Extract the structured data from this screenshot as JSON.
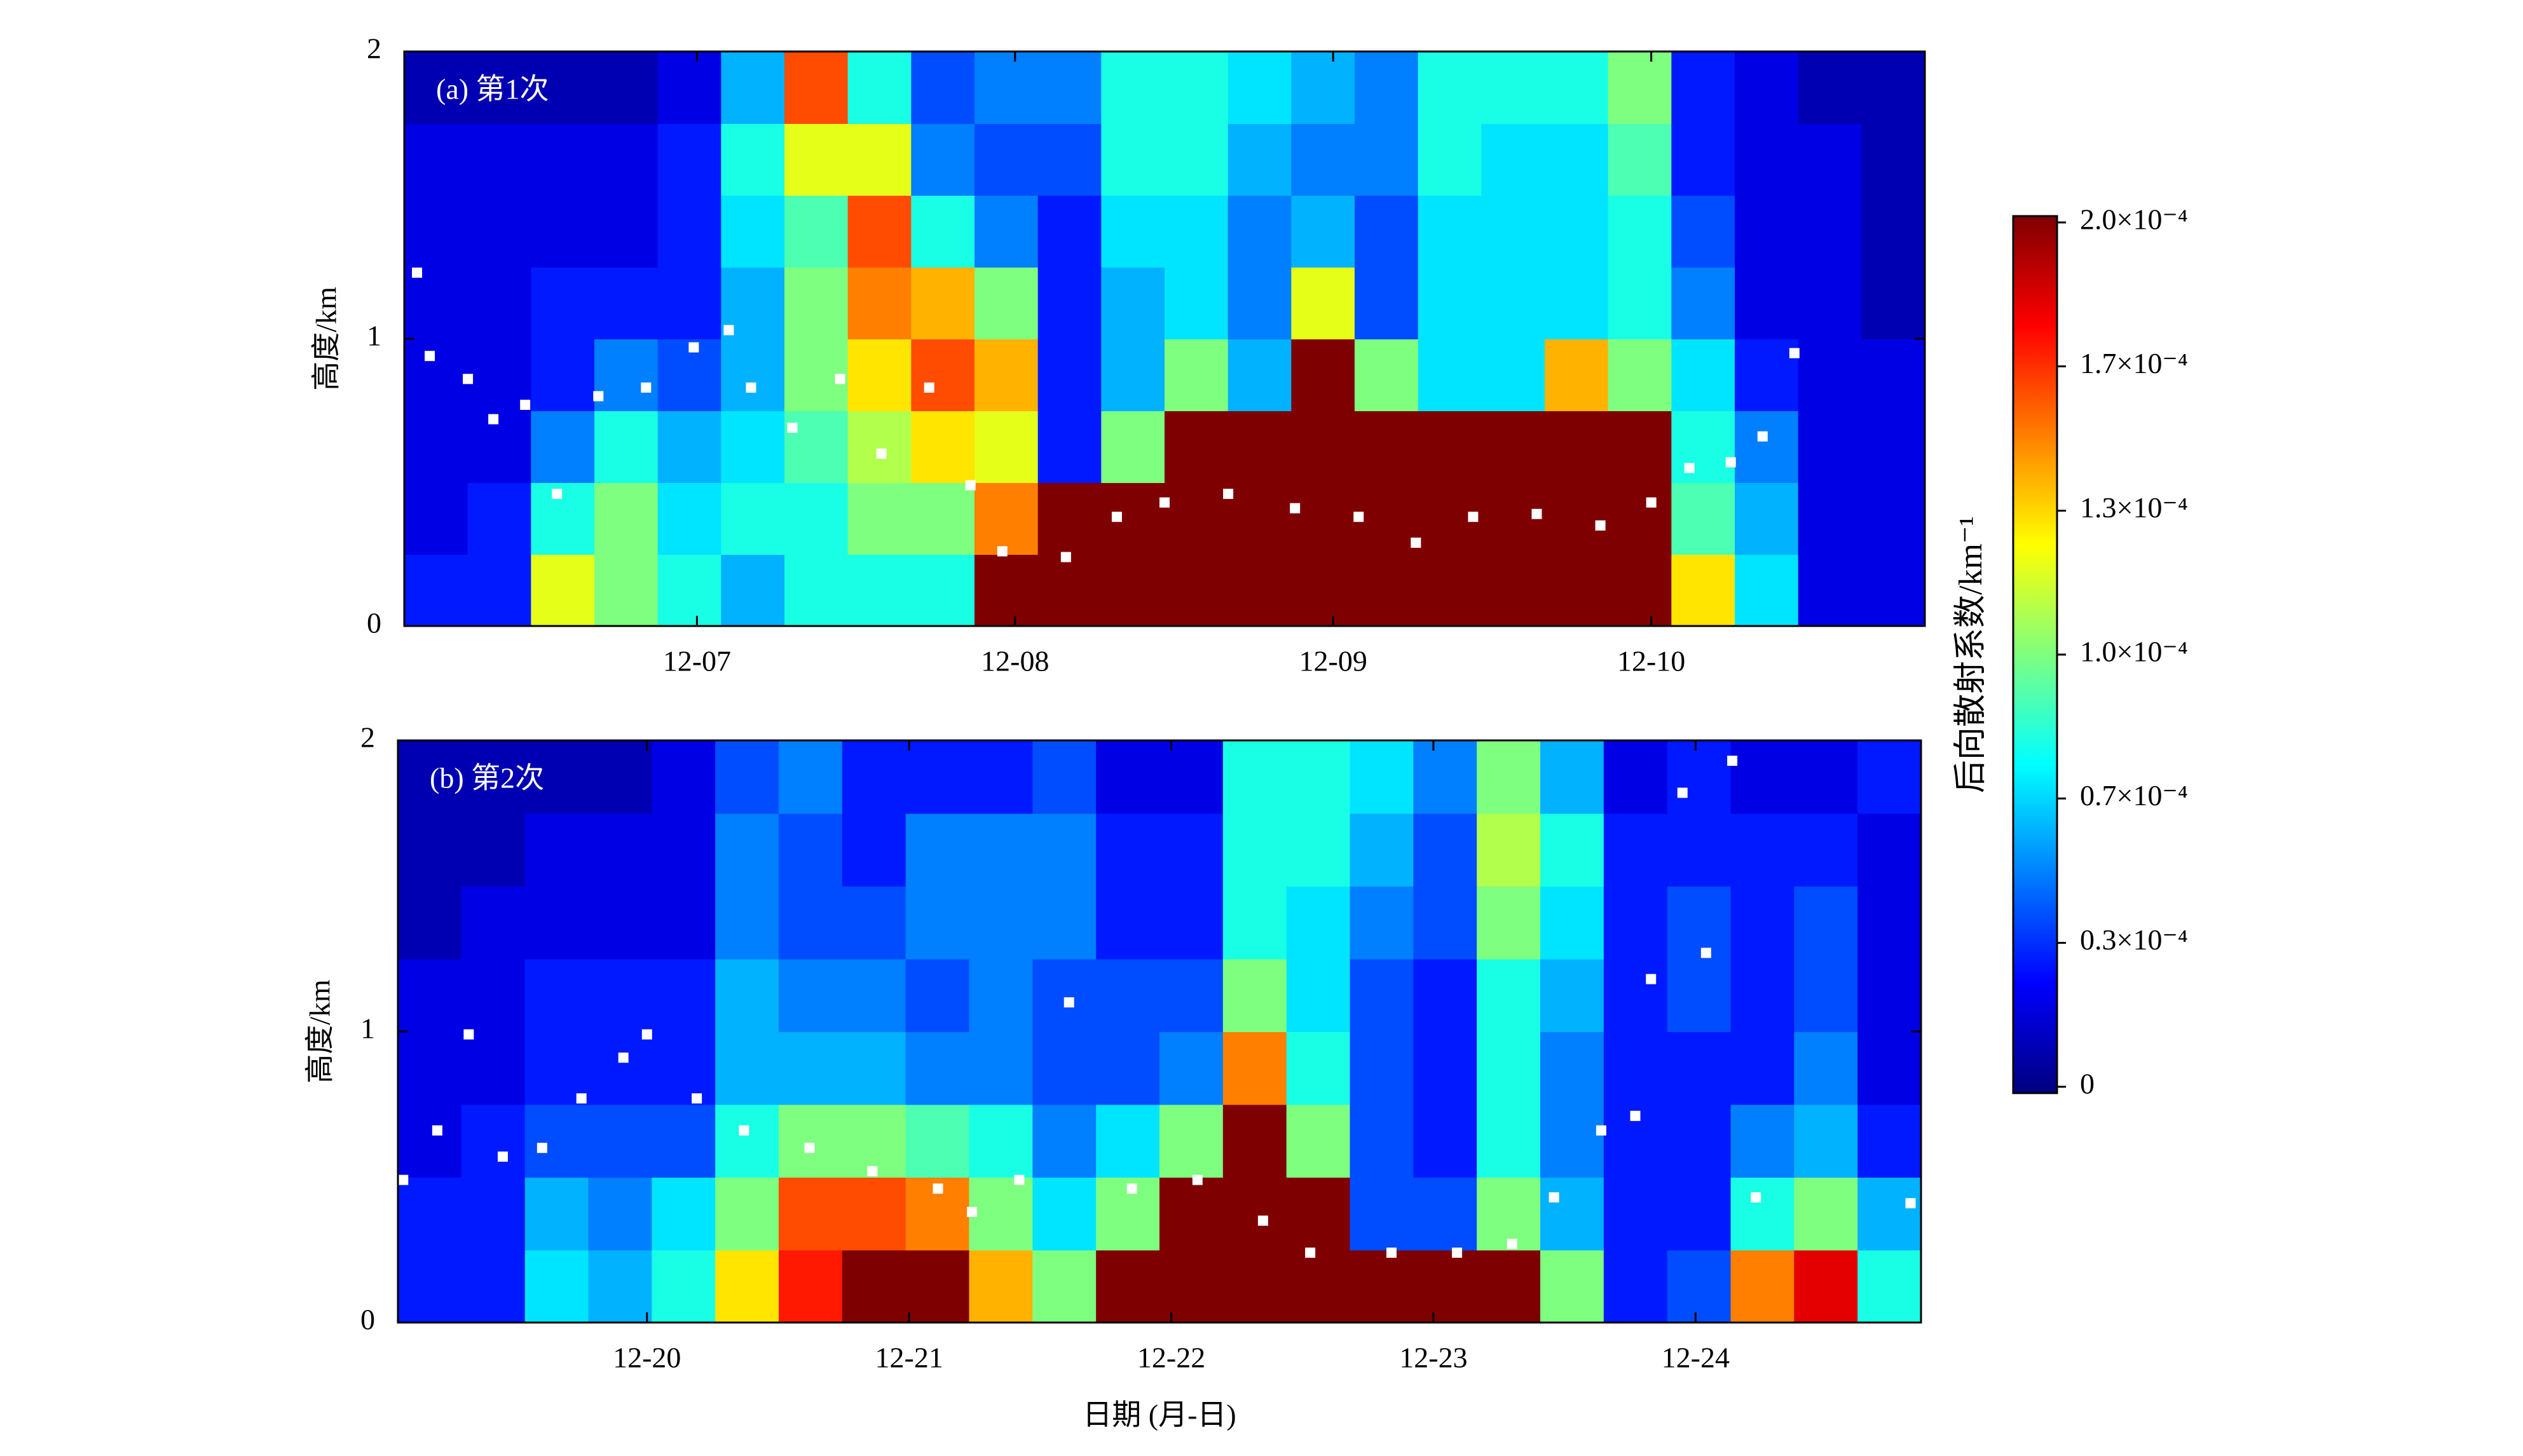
{
  "chart_data": [
    {
      "type": "heatmap",
      "title": "(a) 第1次",
      "ylabel": "高度/km",
      "xlim": [
        6.08,
        10.86
      ],
      "ylim": [
        0,
        2
      ],
      "xticks": [
        {
          "value": 7,
          "label": "12-07"
        },
        {
          "value": 8,
          "label": "12-08"
        },
        {
          "value": 9,
          "label": "12-09"
        },
        {
          "value": 10,
          "label": "12-10"
        }
      ],
      "yticks": [
        0,
        1,
        2
      ],
      "z": [
        [
          3e-05,
          3e-05,
          0.00012,
          0.0001,
          8e-05,
          6e-05,
          8e-05,
          8e-05,
          8e-05,
          0.0002,
          0.0002,
          0.0002,
          0.0002,
          0.0002,
          0.0002,
          0.0002,
          0.0002,
          0.0002,
          0.0002,
          0.0002,
          0.00013,
          7e-05,
          2e-05,
          2e-05
        ],
        [
          2e-05,
          3e-05,
          8e-05,
          0.0001,
          7e-05,
          8e-05,
          8e-05,
          0.0001,
          0.0001,
          0.00015,
          0.0002,
          0.0002,
          0.0002,
          0.0002,
          0.0002,
          0.0002,
          0.0002,
          0.0002,
          0.0002,
          0.0002,
          9e-05,
          6e-05,
          2e-05,
          2e-05
        ],
        [
          2e-05,
          2e-05,
          5e-05,
          8e-05,
          6e-05,
          7e-05,
          9e-05,
          0.00011,
          0.00013,
          0.00012,
          3e-05,
          0.0001,
          0.0002,
          0.0002,
          0.0002,
          0.0002,
          0.0002,
          0.0002,
          0.0002,
          0.0002,
          8e-05,
          5e-05,
          2e-05,
          2e-05
        ],
        [
          2e-05,
          2e-05,
          3e-05,
          5e-05,
          4e-05,
          6e-05,
          0.0001,
          0.00013,
          0.00016,
          0.00014,
          3e-05,
          6e-05,
          0.0001,
          6e-05,
          0.0002,
          0.0001,
          7e-05,
          7e-05,
          0.00014,
          0.0001,
          7e-05,
          3e-05,
          2e-05,
          2e-05
        ],
        [
          2e-05,
          2e-05,
          3e-05,
          3e-05,
          3e-05,
          6e-05,
          0.0001,
          0.00015,
          0.00014,
          0.0001,
          3e-05,
          6e-05,
          7e-05,
          5e-05,
          0.00012,
          4e-05,
          7e-05,
          7e-05,
          7e-05,
          8e-05,
          5e-05,
          2e-05,
          2e-05,
          1e-05
        ],
        [
          2e-05,
          2e-05,
          2e-05,
          2e-05,
          3e-05,
          7e-05,
          9e-05,
          0.00016,
          8e-05,
          5e-05,
          3e-05,
          7e-05,
          7e-05,
          5e-05,
          6e-05,
          4e-05,
          7e-05,
          7e-05,
          7e-05,
          8e-05,
          4e-05,
          2e-05,
          2e-05,
          1e-05
        ],
        [
          2e-05,
          2e-05,
          2e-05,
          2e-05,
          3e-05,
          8e-05,
          0.00012,
          0.00012,
          5e-05,
          4e-05,
          4e-05,
          8e-05,
          8e-05,
          6e-05,
          5e-05,
          5e-05,
          8e-05,
          7e-05,
          7e-05,
          9e-05,
          3e-05,
          2e-05,
          2e-05,
          1e-05
        ],
        [
          1e-05,
          1e-05,
          1e-05,
          1e-05,
          2e-05,
          6e-05,
          0.00016,
          8e-05,
          4e-05,
          5e-05,
          5e-05,
          8e-05,
          8e-05,
          7e-05,
          6e-05,
          5e-05,
          8e-05,
          8e-05,
          8e-05,
          0.0001,
          3e-05,
          2e-05,
          1e-05,
          1e-05
        ]
      ],
      "points": {
        "color": "#ffffff",
        "x": [
          6.12,
          6.16,
          6.28,
          6.36,
          6.46,
          6.56,
          6.69,
          6.84,
          6.99,
          7.1,
          7.17,
          7.3,
          7.45,
          7.58,
          7.73,
          7.86,
          7.96,
          8.16,
          8.32,
          8.47,
          8.67,
          8.88,
          9.08,
          9.26,
          9.44,
          9.64,
          9.84,
          10.0,
          10.12,
          10.25,
          10.35,
          10.45
        ],
        "y": [
          1.23,
          0.94,
          0.86,
          0.72,
          0.77,
          0.46,
          0.8,
          0.83,
          0.97,
          1.03,
          0.83,
          0.69,
          0.86,
          0.6,
          0.83,
          0.49,
          0.26,
          0.24,
          0.38,
          0.43,
          0.46,
          0.41,
          0.38,
          0.29,
          0.38,
          0.39,
          0.35,
          0.43,
          0.55,
          0.57,
          0.66,
          0.95
        ]
      }
    },
    {
      "type": "heatmap",
      "title": "(b) 第2次",
      "ylabel": "高度/km",
      "xlabel": "日期 (月-日)",
      "xlim": [
        19.05,
        24.86
      ],
      "ylim": [
        0,
        2
      ],
      "xticks": [
        {
          "value": 20,
          "label": "12-20"
        },
        {
          "value": 21,
          "label": "12-21"
        },
        {
          "value": 22,
          "label": "12-22"
        },
        {
          "value": 23,
          "label": "12-23"
        },
        {
          "value": 24,
          "label": "12-24"
        }
      ],
      "yticks": [
        0,
        1,
        2
      ],
      "z": [
        [
          3e-05,
          3e-05,
          7e-05,
          6e-05,
          8e-05,
          0.00013,
          0.00017,
          0.0002,
          0.0002,
          0.00014,
          0.0001,
          0.0002,
          0.0002,
          0.0002,
          0.0002,
          0.0002,
          0.0002,
          0.0002,
          0.0001,
          3e-05,
          4e-05,
          0.00015,
          0.00018,
          8e-05
        ],
        [
          3e-05,
          3e-05,
          6e-05,
          5e-05,
          7e-05,
          0.0001,
          0.00016,
          0.00016,
          0.00015,
          0.0001,
          7e-05,
          0.0001,
          0.0002,
          0.0002,
          0.0002,
          4e-05,
          4e-05,
          0.0001,
          6e-05,
          3e-05,
          3e-05,
          8e-05,
          0.0001,
          6e-05
        ],
        [
          2e-05,
          3e-05,
          4e-05,
          4e-05,
          4e-05,
          8e-05,
          0.0001,
          0.0001,
          9e-05,
          8e-05,
          5e-05,
          7e-05,
          0.0001,
          0.0002,
          0.0001,
          4e-05,
          3e-05,
          8e-05,
          5e-05,
          3e-05,
          3e-05,
          5e-05,
          6e-05,
          3e-05
        ],
        [
          2e-05,
          2e-05,
          3e-05,
          3e-05,
          3e-05,
          6e-05,
          6e-05,
          6e-05,
          5e-05,
          5e-05,
          4e-05,
          4e-05,
          5e-05,
          0.00015,
          8e-05,
          4e-05,
          3e-05,
          8e-05,
          5e-05,
          3e-05,
          3e-05,
          3e-05,
          5e-05,
          2e-05
        ],
        [
          2e-05,
          2e-05,
          3e-05,
          3e-05,
          3e-05,
          6e-05,
          5e-05,
          5e-05,
          4e-05,
          5e-05,
          4e-05,
          4e-05,
          4e-05,
          0.0001,
          7e-05,
          4e-05,
          3e-05,
          8e-05,
          6e-05,
          3e-05,
          4e-05,
          3e-05,
          4e-05,
          2e-05
        ],
        [
          1e-05,
          2e-05,
          2e-05,
          2e-05,
          2e-05,
          5e-05,
          4e-05,
          4e-05,
          5e-05,
          5e-05,
          5e-05,
          3e-05,
          3e-05,
          8e-05,
          7e-05,
          5e-05,
          4e-05,
          0.0001,
          7e-05,
          3e-05,
          4e-05,
          3e-05,
          4e-05,
          2e-05
        ],
        [
          1e-05,
          1e-05,
          2e-05,
          2e-05,
          2e-05,
          5e-05,
          4e-05,
          3e-05,
          5e-05,
          5e-05,
          5e-05,
          3e-05,
          3e-05,
          8e-05,
          8e-05,
          6e-05,
          4e-05,
          0.00011,
          8e-05,
          3e-05,
          3e-05,
          3e-05,
          3e-05,
          2e-05
        ],
        [
          1e-05,
          1e-05,
          1e-05,
          1e-05,
          2e-05,
          4e-05,
          5e-05,
          3e-05,
          3e-05,
          3e-05,
          4e-05,
          2e-05,
          2e-05,
          8e-05,
          8e-05,
          7e-05,
          5e-05,
          0.0001,
          6e-05,
          2e-05,
          3e-05,
          2e-05,
          2e-05,
          3e-05
        ]
      ],
      "points": {
        "color": "#ffffff",
        "x": [
          19.07,
          19.2,
          19.32,
          19.45,
          19.6,
          19.75,
          19.91,
          20.0,
          20.19,
          20.37,
          20.62,
          20.86,
          21.11,
          21.24,
          21.42,
          21.61,
          21.85,
          22.1,
          22.35,
          22.53,
          22.84,
          23.09,
          23.3,
          23.46,
          23.64,
          23.77,
          23.83,
          23.95,
          24.04,
          24.14,
          24.23,
          24.82
        ],
        "y": [
          0.49,
          0.66,
          0.99,
          0.57,
          0.6,
          0.77,
          0.91,
          0.99,
          0.77,
          0.66,
          0.6,
          0.52,
          0.46,
          0.38,
          0.49,
          1.1,
          0.46,
          0.49,
          0.35,
          0.24,
          0.24,
          0.24,
          0.27,
          0.43,
          0.66,
          0.71,
          1.18,
          1.82,
          1.27,
          1.93,
          0.43,
          0.41
        ]
      }
    }
  ],
  "colorbar": {
    "label": "后向散射系数/km⁻¹",
    "clim": [
      0,
      0.0002
    ],
    "colormap": [
      "#00007f",
      "#0000ff",
      "#007fff",
      "#00ffff",
      "#7fff7f",
      "#ffff00",
      "#ff7f00",
      "#ff0000",
      "#7f0000"
    ],
    "ticks": [
      0,
      {
        "value": 3.33e-05,
        "label": "0.3×10⁻⁴"
      },
      {
        "value": 6.67e-05,
        "label": "0.7×10⁻⁴"
      },
      {
        "value": 0.0001,
        "label": "1.0×10⁻⁴"
      },
      {
        "value": 0.0001333,
        "label": "1.3×10⁻⁴"
      },
      {
        "value": 0.0001667,
        "label": "1.7×10⁻⁴"
      },
      {
        "value": 0.0002,
        "label": "2.0×10⁻⁴"
      }
    ]
  }
}
